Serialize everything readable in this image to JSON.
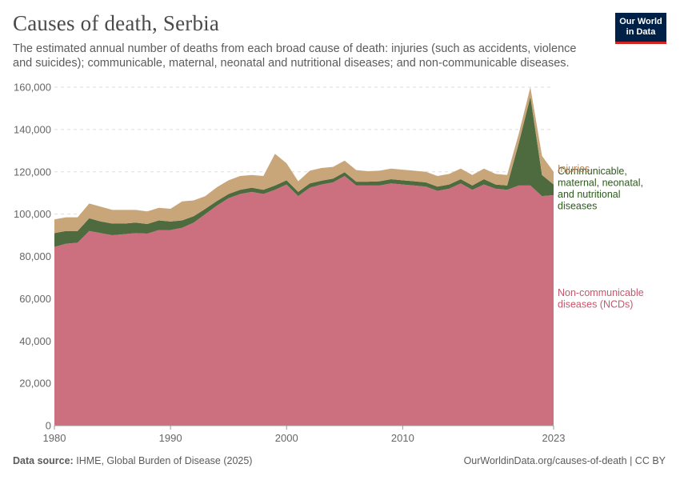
{
  "header": {
    "title": "Causes of death, Serbia",
    "subtitle": "The estimated annual number of deaths from each broad cause of death: injuries (such as accidents, violence and suicides); communicable, maternal, neonatal and nutritional diseases; and non-communicable diseases.",
    "logo_line1": "Our World",
    "logo_line2": "in Data"
  },
  "footer": {
    "source_label": "Data source:",
    "source_text": "IHME, Global Burden of Disease (2025)",
    "url_text": "OurWorldinData.org/causes-of-death | CC BY"
  },
  "colors": {
    "ncd": "#cc7080",
    "communicable": "#4d6b3e",
    "injuries": "#c9a57a",
    "ncd_label": "#c8566a",
    "communicable_label": "#2e5a1e",
    "injuries_label": "#b08157",
    "grid": "#dddddd",
    "axis_text": "#666666"
  },
  "chart_data": {
    "type": "area",
    "stacked": true,
    "title": "Causes of death, Serbia",
    "xlim": [
      1980,
      2023
    ],
    "ylim": [
      0,
      160000
    ],
    "y_ticks": [
      0,
      20000,
      40000,
      60000,
      80000,
      100000,
      120000,
      140000,
      160000
    ],
    "y_tick_labels": [
      "0",
      "20,000",
      "40,000",
      "60,000",
      "80,000",
      "100,000",
      "120,000",
      "140,000",
      "160,000"
    ],
    "x_ticks": [
      1980,
      1990,
      2000,
      2010,
      2023
    ],
    "x_tick_labels": [
      "1980",
      "1990",
      "2000",
      "2010",
      "2023"
    ],
    "x": [
      1980,
      1981,
      1982,
      1983,
      1984,
      1985,
      1986,
      1987,
      1988,
      1989,
      1990,
      1991,
      1992,
      1993,
      1994,
      1995,
      1996,
      1997,
      1998,
      1999,
      2000,
      2001,
      2002,
      2003,
      2004,
      2005,
      2006,
      2007,
      2008,
      2009,
      2010,
      2011,
      2012,
      2013,
      2014,
      2015,
      2016,
      2017,
      2018,
      2019,
      2020,
      2021,
      2022,
      2023
    ],
    "series": [
      {
        "name": "Non-communicable diseases (NCDs)",
        "label_lines": [
          "Non-communicable",
          "diseases (NCDs)"
        ],
        "values": [
          84500,
          86000,
          86500,
          92000,
          91000,
          90000,
          90500,
          91000,
          90800,
          92500,
          92500,
          93500,
          96000,
          100000,
          104000,
          107500,
          109500,
          110500,
          109500,
          111500,
          114000,
          108500,
          112500,
          114000,
          115000,
          118000,
          113500,
          113500,
          113500,
          114500,
          114000,
          113500,
          113000,
          111000,
          112000,
          114500,
          111500,
          114000,
          112000,
          111500,
          113500,
          113500,
          108500,
          109000
        ]
      },
      {
        "name": "Communicable, maternal, neonatal, and nutritional diseases",
        "label_lines": [
          "Communicable,",
          "maternal, neonatal,",
          "and nutritional",
          "diseases"
        ],
        "values": [
          6500,
          6000,
          5500,
          6000,
          5500,
          5500,
          5000,
          5000,
          4500,
          4500,
          4000,
          3500,
          3000,
          2500,
          2200,
          2000,
          2000,
          2000,
          2000,
          2000,
          2000,
          2000,
          2000,
          1800,
          1800,
          1800,
          1800,
          1800,
          2000,
          2000,
          2000,
          2000,
          2000,
          2000,
          2000,
          2000,
          2000,
          2500,
          2000,
          2000,
          20000,
          42000,
          10000,
          5000
        ]
      },
      {
        "name": "Injuries",
        "label_lines": [
          "Injuries"
        ],
        "values": [
          6500,
          6500,
          6500,
          7000,
          7000,
          6500,
          6500,
          6000,
          6000,
          6000,
          6000,
          9000,
          7500,
          6000,
          6500,
          6500,
          6500,
          6000,
          6500,
          15000,
          8000,
          5000,
          6000,
          6000,
          5500,
          5500,
          5500,
          5000,
          5000,
          5000,
          5000,
          5000,
          5000,
          5000,
          5000,
          5000,
          5000,
          5000,
          5000,
          5000,
          4500,
          4500,
          9000,
          6000
        ]
      }
    ]
  }
}
